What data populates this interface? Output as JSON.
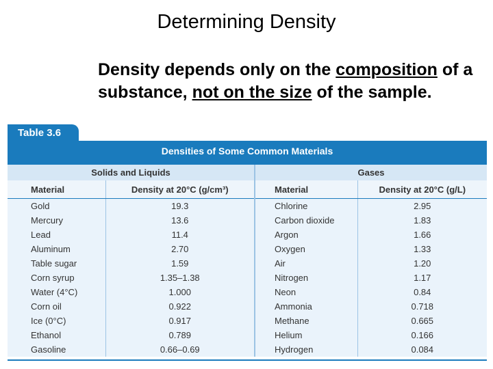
{
  "title": "Determining Density",
  "intro": {
    "part1": "Density depends only on the ",
    "part2": "composition",
    "part3": " of a substance, ",
    "part4": "not on the size",
    "part5": " of the sample."
  },
  "table": {
    "tab_label": "Table 3.6",
    "caption": "Densities of Some Common Materials",
    "group_left": "Solids and Liquids",
    "group_right": "Gases",
    "headers": [
      "Material",
      "Density at 20°C (g/cm³)",
      "Material",
      "Density at 20°C (g/L)"
    ],
    "rows": [
      [
        "Gold",
        "19.3",
        "Chlorine",
        "2.95"
      ],
      [
        "Mercury",
        "13.6",
        "Carbon dioxide",
        "1.83"
      ],
      [
        "Lead",
        "11.4",
        "Argon",
        "1.66"
      ],
      [
        "Aluminum",
        "2.70",
        "Oxygen",
        "1.33"
      ],
      [
        "Table sugar",
        "1.59",
        "Air",
        "1.20"
      ],
      [
        "Corn syrup",
        "1.35–1.38",
        "Nitrogen",
        "1.17"
      ],
      [
        "Water (4°C)",
        "1.000",
        "Neon",
        "0.84"
      ],
      [
        "Corn oil",
        "0.922",
        "Ammonia",
        "0.718"
      ],
      [
        "Ice (0°C)",
        "0.917",
        "Methane",
        "0.665"
      ],
      [
        "Ethanol",
        "0.789",
        "Helium",
        "0.166"
      ],
      [
        "Gasoline",
        "0.66–0.69",
        "Hydrogen",
        "0.084"
      ]
    ]
  }
}
